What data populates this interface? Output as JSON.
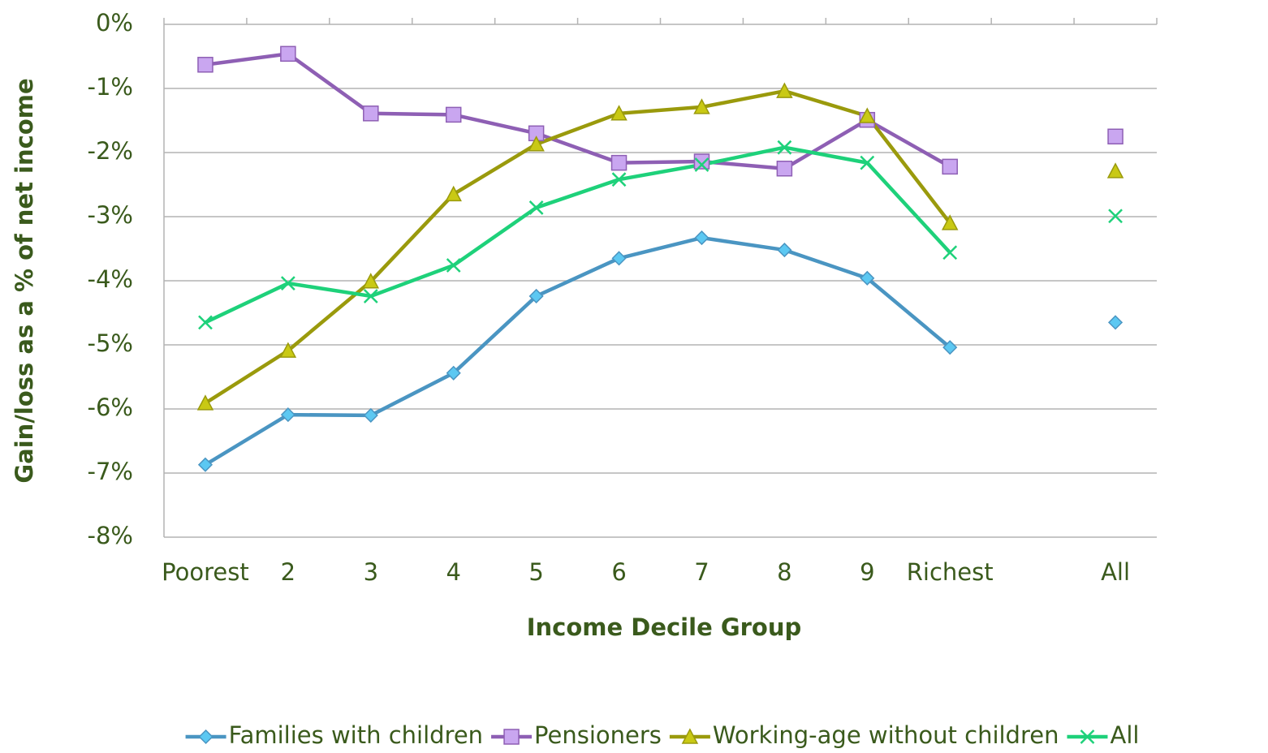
{
  "chart_data": {
    "type": "line",
    "x_label": "Income Decile Group",
    "y_label": "Gain/loss as a % of net income",
    "categories": [
      "Poorest",
      "2",
      "3",
      "4",
      "5",
      "6",
      "7",
      "8",
      "9",
      "Richest",
      null,
      "All"
    ],
    "series": [
      {
        "name": "Families with children",
        "color": "#4a95c2",
        "marker_color": "#5cc8f2",
        "marker": "diamond",
        "values": [
          -6.87,
          -6.09,
          -6.1,
          -5.44,
          -4.24,
          -3.65,
          -3.33,
          -3.52,
          -3.96,
          -5.04,
          null,
          -4.65
        ]
      },
      {
        "name": "Pensioners",
        "color": "#8e5fb4",
        "marker_color": "#c9a6f0",
        "marker": "square",
        "values": [
          -0.63,
          -0.46,
          -1.39,
          -1.41,
          -1.7,
          -2.16,
          -2.14,
          -2.25,
          -1.49,
          -2.22,
          null,
          -1.75
        ]
      },
      {
        "name": "Working-age without children",
        "color": "#9a9a0c",
        "marker_color": "#c9c914",
        "marker": "triangle",
        "values": [
          -5.91,
          -5.09,
          -4.01,
          -2.65,
          -1.87,
          -1.39,
          -1.29,
          -1.04,
          -1.43,
          -3.1,
          null,
          -2.29
        ]
      },
      {
        "name": "All",
        "color": "#1ed17a",
        "marker_color": "#1ed17a",
        "marker": "x",
        "values": [
          -4.65,
          -4.04,
          -4.24,
          -3.76,
          -2.86,
          -2.42,
          -2.19,
          -1.92,
          -2.16,
          -3.56,
          null,
          -2.99
        ]
      }
    ],
    "ylim": [
      -8,
      0
    ],
    "yticks": [
      {
        "value": 0,
        "label": "0%"
      },
      {
        "value": -1,
        "label": "-1%"
      },
      {
        "value": -2,
        "label": "-2%"
      },
      {
        "value": -3,
        "label": "-3%"
      },
      {
        "value": -4,
        "label": "-4%"
      },
      {
        "value": -5,
        "label": "-5%"
      },
      {
        "value": -6,
        "label": "-6%"
      },
      {
        "value": -7,
        "label": "-7%"
      },
      {
        "value": -8,
        "label": "-8%"
      }
    ],
    "grid": true,
    "legend": "bottom"
  }
}
